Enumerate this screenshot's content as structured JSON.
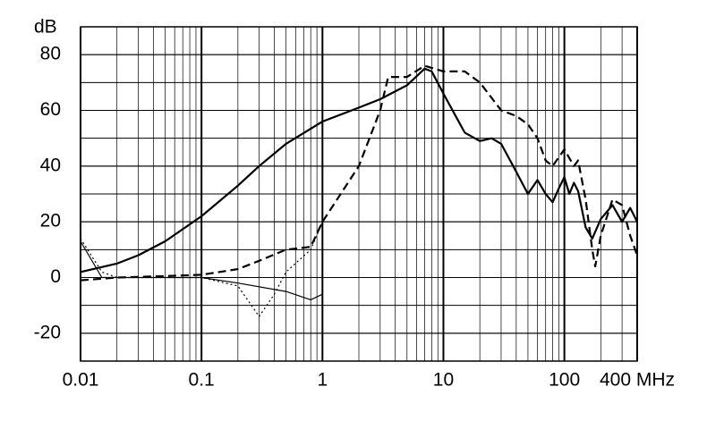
{
  "chart_data": {
    "type": "line",
    "y_label": "dB",
    "x_scale": "log",
    "grid": true,
    "xlim": [
      0.01,
      400
    ],
    "xticks": [
      0.01,
      0.1,
      1,
      10,
      100,
      {
        "value": 400,
        "label": "400 MHz"
      }
    ],
    "ylim": [
      -30,
      90
    ],
    "yticks": [
      -20,
      0,
      20,
      40,
      60,
      80
    ],
    "series": [
      {
        "color": "#000000",
        "style": "solid",
        "width": 2.2,
        "x": [
          0.01,
          0.02,
          0.03,
          0.05,
          0.1,
          0.2,
          0.3,
          0.5,
          1,
          2,
          3,
          5,
          7,
          8,
          10,
          15,
          20,
          25,
          30,
          40,
          50,
          60,
          70,
          80,
          90,
          100,
          110,
          120,
          130,
          150,
          170,
          200,
          250,
          300,
          350,
          400
        ],
        "values": [
          2,
          5,
          8,
          13,
          22,
          33,
          40,
          48,
          56,
          61,
          64,
          69,
          75,
          74,
          66,
          52,
          49,
          50,
          48,
          38,
          30,
          35,
          30,
          27,
          32,
          36,
          30,
          34,
          31,
          18,
          14,
          21,
          26,
          20,
          25,
          20
        ]
      },
      {
        "color": "#000000",
        "style": "dashed",
        "width": 2.2,
        "x": [
          0.01,
          0.02,
          0.05,
          0.1,
          0.2,
          0.3,
          0.5,
          0.8,
          1,
          2,
          3,
          3.5,
          5,
          7,
          10,
          15,
          20,
          30,
          40,
          50,
          60,
          70,
          80,
          100,
          120,
          130,
          150,
          170,
          180,
          200,
          250,
          300,
          350,
          400
        ],
        "values": [
          -1,
          0,
          0.5,
          1,
          3,
          6,
          10,
          11,
          20,
          40,
          60,
          72,
          72,
          76,
          74,
          74,
          70,
          60,
          58,
          55,
          50,
          42,
          40,
          46,
          40,
          42,
          28,
          10,
          4,
          15,
          28,
          26,
          15,
          8
        ]
      },
      {
        "color": "#000000",
        "style": "dotted",
        "width": 1.2,
        "x": [
          0.01,
          0.015,
          0.02,
          0.1,
          0.2,
          0.3,
          0.4,
          0.5,
          0.8,
          1
        ],
        "values": [
          14,
          2,
          0,
          0,
          -3,
          -14,
          -6,
          2,
          10,
          20
        ]
      },
      {
        "color": "#000000",
        "style": "solid",
        "width": 1.2,
        "x": [
          0.01,
          0.015,
          0.02,
          0.1,
          0.2,
          0.5,
          0.8,
          1
        ],
        "values": [
          13,
          0,
          0,
          0,
          -2,
          -5,
          -8,
          -6
        ]
      }
    ]
  }
}
